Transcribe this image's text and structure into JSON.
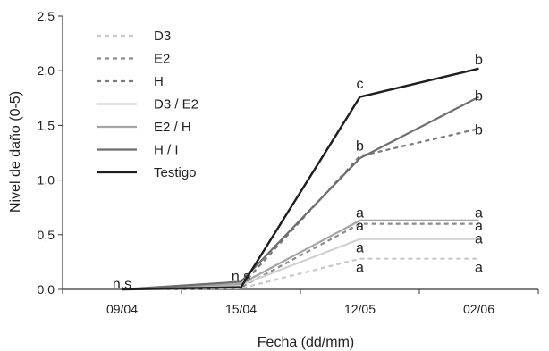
{
  "chart_data": {
    "type": "line",
    "title": "",
    "xlabel": "Fecha (dd/mm)",
    "ylabel": "Nivel de daño (0-5)",
    "categories": [
      "09/04",
      "15/04",
      "12/05",
      "02/06"
    ],
    "ylim": [
      0,
      2.5
    ],
    "yticks": [
      "0,0",
      "0,5",
      "1,0",
      "1,5",
      "2,0",
      "2,5"
    ],
    "grid": false,
    "legend_position": "top-left",
    "series": [
      {
        "name": "D3",
        "values": [
          0,
          0.01,
          0.28,
          0.28
        ],
        "color": "#c8c8c8",
        "dash": true
      },
      {
        "name": "E2",
        "values": [
          0,
          0.02,
          0.6,
          0.6
        ],
        "color": "#8c8c8c",
        "dash": true
      },
      {
        "name": "H",
        "values": [
          0,
          0.03,
          1.22,
          1.47
        ],
        "color": "#7a7a7a",
        "dash": true
      },
      {
        "name": "D3 / E2",
        "values": [
          0,
          0.04,
          0.46,
          0.46
        ],
        "color": "#d0d0d0",
        "dash": false
      },
      {
        "name": "E2 / H",
        "values": [
          0,
          0.05,
          0.63,
          0.63
        ],
        "color": "#a5a5a5",
        "dash": false
      },
      {
        "name": "H / I",
        "values": [
          0,
          0.07,
          1.2,
          1.76
        ],
        "color": "#6e6e6e",
        "dash": false
      },
      {
        "name": "Testigo",
        "values": [
          0,
          0.02,
          1.76,
          2.02
        ],
        "color": "#1e1e1e",
        "dash": false
      }
    ],
    "annotations": [
      {
        "text": "n.s",
        "cat": 0,
        "y": 0.05
      },
      {
        "text": "n.s",
        "cat": 1,
        "y": 0.12
      },
      {
        "text": "c",
        "cat": 2,
        "y": 1.88
      },
      {
        "text": "b",
        "cat": 2,
        "y": 1.31
      },
      {
        "text": "a",
        "cat": 2,
        "y": 0.7
      },
      {
        "text": "a",
        "cat": 2,
        "y": 0.58
      },
      {
        "text": "a",
        "cat": 2,
        "y": 0.38
      },
      {
        "text": "a",
        "cat": 2,
        "y": 0.2
      },
      {
        "text": "b",
        "cat": 3,
        "y": 2.1
      },
      {
        "text": "b",
        "cat": 3,
        "y": 1.77
      },
      {
        "text": "b",
        "cat": 3,
        "y": 1.46
      },
      {
        "text": "a",
        "cat": 3,
        "y": 0.7
      },
      {
        "text": "a",
        "cat": 3,
        "y": 0.58
      },
      {
        "text": "a",
        "cat": 3,
        "y": 0.46
      },
      {
        "text": "a",
        "cat": 3,
        "y": 0.2
      }
    ]
  }
}
